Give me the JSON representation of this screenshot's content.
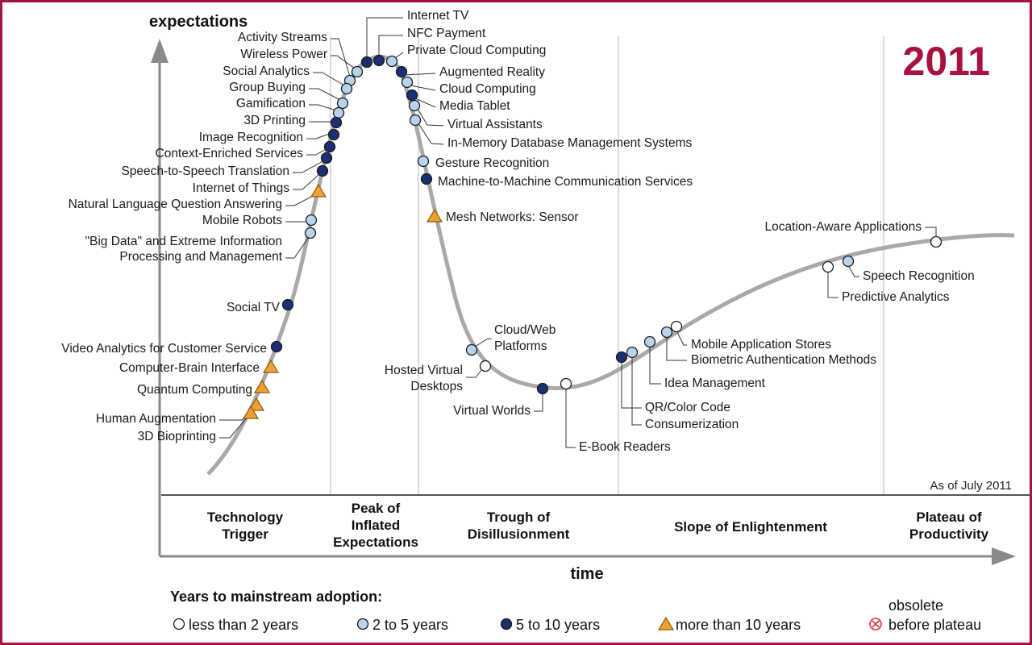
{
  "chart_data": {
    "type": "scatter",
    "year_label": "2011",
    "ylabel": "expectations",
    "xlabel": "time",
    "as_of": "As of July 2011",
    "phases": [
      [
        "Technology",
        "Trigger"
      ],
      [
        "Peak of",
        "Inflated",
        "Expectations"
      ],
      [
        "Trough of",
        "Disillusionment"
      ],
      [
        "Slope of Enlightenment"
      ],
      [
        "Plateau of",
        "Productivity"
      ]
    ],
    "legend": {
      "title": "Years to mainstream adoption:",
      "items": [
        {
          "key": "lt2",
          "label": "less than 2 years"
        },
        {
          "key": "2to5",
          "label": "2 to 5 years"
        },
        {
          "key": "5to10",
          "label": "5 to 10 years"
        },
        {
          "key": "gt10",
          "label": "more than 10 years"
        },
        {
          "key": "obsolete",
          "label": [
            "obsolete",
            "before plateau"
          ]
        }
      ]
    },
    "colors": {
      "accent": "#a8123e",
      "curve": "#9a9a9a",
      "lt2": "#ffffff",
      "2to5": "#b9d3ee",
      "5to10": "#1b2f73",
      "gt10": "#f0a030",
      "obsolete": "#d23a3a"
    },
    "technologies": [
      {
        "name": "Internet TV",
        "cat": "5to10"
      },
      {
        "name": "NFC Payment",
        "cat": "5to10"
      },
      {
        "name": "Private Cloud Computing",
        "cat": "2to5"
      },
      {
        "name": "Activity Streams",
        "cat": "2to5"
      },
      {
        "name": "Wireless Power",
        "cat": "2to5"
      },
      {
        "name": "Social Analytics",
        "cat": "2to5"
      },
      {
        "name": "Group Buying",
        "cat": "2to5"
      },
      {
        "name": "Gamification",
        "cat": "2to5"
      },
      {
        "name": "3D Printing",
        "cat": "5to10"
      },
      {
        "name": "Image Recognition",
        "cat": "5to10"
      },
      {
        "name": "Context-Enriched Services",
        "cat": "5to10"
      },
      {
        "name": "Speech-to-Speech Translation",
        "cat": "5to10"
      },
      {
        "name": "Internet of Things",
        "cat": "5to10"
      },
      {
        "name": "Natural Language Question Answering",
        "cat": "gt10"
      },
      {
        "name": "Mobile Robots",
        "cat": "2to5"
      },
      {
        "name": [
          "\"Big Data\" and Extreme Information",
          "Processing and Management"
        ],
        "cat": "2to5"
      },
      {
        "name": "Social TV",
        "cat": "5to10"
      },
      {
        "name": "Video Analytics for Customer Service",
        "cat": "5to10"
      },
      {
        "name": "Computer-Brain Interface",
        "cat": "gt10"
      },
      {
        "name": "Quantum Computing",
        "cat": "gt10"
      },
      {
        "name": "Human Augmentation",
        "cat": "gt10"
      },
      {
        "name": "3D Bioprinting",
        "cat": "gt10"
      },
      {
        "name": "Augmented Reality",
        "cat": "5to10"
      },
      {
        "name": "Cloud Computing",
        "cat": "2to5"
      },
      {
        "name": "Media Tablet",
        "cat": "5to10"
      },
      {
        "name": "Virtual Assistants",
        "cat": "2to5"
      },
      {
        "name": "In-Memory Database Management Systems",
        "cat": "2to5"
      },
      {
        "name": "Gesture Recognition",
        "cat": "2to5"
      },
      {
        "name": "Machine-to-Machine Communication Services",
        "cat": "5to10"
      },
      {
        "name": "Mesh Networks: Sensor",
        "cat": "gt10"
      },
      {
        "name": [
          "Cloud/Web",
          "Platforms"
        ],
        "cat": "2to5"
      },
      {
        "name": [
          "Hosted Virtual",
          "Desktops"
        ],
        "cat": "lt2"
      },
      {
        "name": "Virtual Worlds",
        "cat": "5to10"
      },
      {
        "name": "E-Book Readers",
        "cat": "lt2"
      },
      {
        "name": "QR/Color Code",
        "cat": "5to10"
      },
      {
        "name": "Consumerization",
        "cat": "2to5"
      },
      {
        "name": "Idea Management",
        "cat": "2to5"
      },
      {
        "name": "Biometric Authentication Methods",
        "cat": "2to5"
      },
      {
        "name": "Mobile Application Stores",
        "cat": "lt2"
      },
      {
        "name": "Predictive Analytics",
        "cat": "lt2"
      },
      {
        "name": "Speech Recognition",
        "cat": "2to5"
      },
      {
        "name": "Location-Aware Applications",
        "cat": "lt2"
      }
    ]
  }
}
